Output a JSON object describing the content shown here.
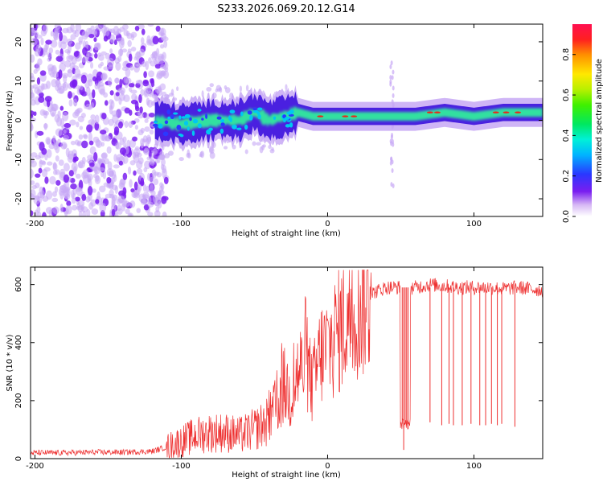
{
  "page_title": "S233.2026.069.20.12.G14",
  "colors": {
    "snr_line": "#ee3030",
    "spec_core": "#30e0a0",
    "spec_edge": "#4a20e0",
    "spec_halo": "#c7a8f5",
    "spec_peak": "#e03020"
  },
  "chart_data": [
    {
      "type": "heatmap",
      "title": "S233.2026.069.20.12.G14",
      "xlabel": "Height of straight line (km)",
      "ylabel": "Frequency (Hz)",
      "xlim": [
        -203,
        147
      ],
      "ylim": [
        -24.5,
        24.5
      ],
      "x_ticks": [
        -200,
        -100,
        0,
        100
      ],
      "x_tick_labels": [
        "-200",
        "-100",
        "0",
        "100"
      ],
      "y_ticks": [
        -20,
        -10,
        0,
        10,
        20
      ],
      "y_tick_labels": [
        "-20",
        "-10",
        "0",
        "10",
        "20"
      ],
      "ridge": {
        "x": [
          -120,
          -100,
          -80,
          -60,
          -50,
          -40,
          -30,
          -20,
          -10,
          0,
          20,
          40,
          60,
          80,
          100,
          120,
          147
        ],
        "freq_hz": [
          0,
          -1,
          0,
          0,
          2,
          0,
          1,
          2,
          1,
          1,
          1,
          1,
          1,
          2,
          1,
          2,
          2
        ]
      },
      "noise_region_x": [
        -203,
        -110
      ],
      "colorbar": {
        "label": "Normalized spectral amplitude",
        "range": [
          0,
          0.95
        ],
        "ticks": [
          0.0,
          0.2,
          0.4,
          0.6,
          0.8
        ],
        "tick_labels": [
          "0.0",
          "0.2",
          "0.4",
          "0.6",
          "0.8"
        ]
      }
    },
    {
      "type": "line",
      "xlabel": "Height of straight line (km)",
      "ylabel": "SNR (10 * v/v)",
      "xlim": [
        -203,
        147
      ],
      "ylim": [
        0,
        660
      ],
      "x_ticks": [
        -200,
        -100,
        0,
        100
      ],
      "x_tick_labels": [
        "-200",
        "-100",
        "0",
        "100"
      ],
      "y_ticks": [
        0,
        200,
        400,
        600
      ],
      "y_tick_labels": [
        "0",
        "200",
        "400",
        "600"
      ],
      "series": [
        {
          "name": "SNR",
          "x": [
            -203,
            -180,
            -160,
            -140,
            -120,
            -110,
            -100,
            -90,
            -80,
            -70,
            -60,
            -50,
            -40,
            -35,
            -30,
            -25,
            -20,
            -15,
            -10,
            -5,
            0,
            5,
            10,
            15,
            20,
            25,
            30,
            40,
            50,
            55,
            60,
            70,
            80,
            90,
            100,
            110,
            120,
            130,
            147
          ],
          "y": [
            20,
            20,
            22,
            22,
            25,
            40,
            60,
            80,
            90,
            90,
            80,
            100,
            130,
            180,
            250,
            220,
            300,
            320,
            250,
            360,
            380,
            420,
            460,
            500,
            520,
            550,
            570,
            590,
            590,
            590,
            590,
            600,
            595,
            590,
            590,
            590,
            585,
            590,
            580
          ]
        }
      ],
      "dropouts": [
        {
          "x": 51,
          "y": 120
        },
        {
          "x": 52,
          "y": 30
        },
        {
          "x": 53,
          "y": 120
        },
        {
          "x": 54,
          "y": 115
        },
        {
          "x": 55,
          "y": 120
        },
        {
          "x": 70,
          "y": 125
        },
        {
          "x": 78,
          "y": 115
        },
        {
          "x": 83,
          "y": 120
        },
        {
          "x": 86,
          "y": 115
        },
        {
          "x": 92,
          "y": 115
        },
        {
          "x": 98,
          "y": 120
        },
        {
          "x": 104,
          "y": 115
        },
        {
          "x": 108,
          "y": 115
        },
        {
          "x": 112,
          "y": 120
        },
        {
          "x": 116,
          "y": 115
        },
        {
          "x": 119,
          "y": 120
        },
        {
          "x": 128,
          "y": 110
        }
      ]
    }
  ]
}
